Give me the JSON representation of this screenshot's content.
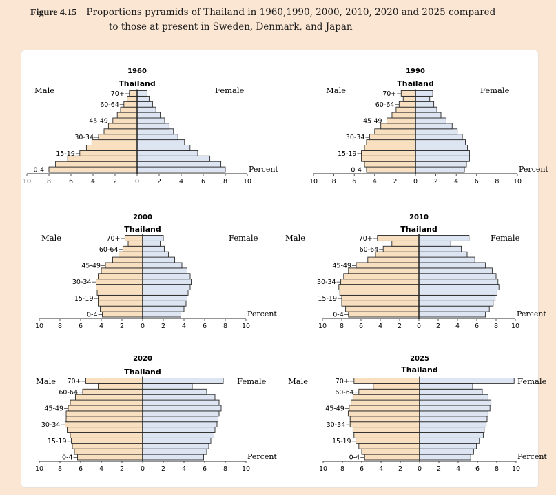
{
  "figure": {
    "label": "Figure 4.15",
    "caption_line1": "Proportions pyramids of Thailand in 1960,1990, 2000, 2010, 2020 and 2025 compared",
    "caption_line2": "to those at present in Sweden, Denmark, and Japan"
  },
  "colors": {
    "male_fill": "#f8dfbf",
    "female_fill": "#dde5f3",
    "bar_stroke": "#2a2a2a"
  },
  "chart_data": [
    {
      "type": "bar",
      "orientation": "horizontal-pyramid",
      "title": "1960",
      "subtitle": "Thailand",
      "male_label": "Male",
      "female_label": "Female",
      "xlabel": "Percent",
      "xlim": [
        -10,
        10
      ],
      "x_ticks": [
        "10",
        "8",
        "6",
        "4",
        "2",
        "0",
        "2",
        "4",
        "6",
        "8",
        "10"
      ],
      "age_groups": [
        "0-4",
        "5-9",
        "10-14",
        "15-19",
        "20-24",
        "25-29",
        "30-34",
        "35-39",
        "40-44",
        "45-49",
        "50-54",
        "55-59",
        "60-64",
        "65-69",
        "70+"
      ],
      "age_labels_shown": {
        "0": "0-4",
        "3": "15-19",
        "6": "30-34",
        "9": "45-49",
        "12": "60-64",
        "14": "70+"
      },
      "series": [
        {
          "name": "Male",
          "values": [
            8.0,
            7.4,
            6.3,
            5.2,
            4.6,
            4.1,
            3.5,
            3.0,
            2.6,
            2.2,
            1.8,
            1.5,
            1.2,
            0.9,
            0.7
          ]
        },
        {
          "name": "Female",
          "values": [
            8.0,
            7.6,
            6.6,
            5.5,
            4.8,
            4.3,
            3.7,
            3.3,
            2.9,
            2.5,
            2.1,
            1.7,
            1.4,
            1.1,
            0.9
          ]
        }
      ]
    },
    {
      "type": "bar",
      "orientation": "horizontal-pyramid",
      "title": "1990",
      "subtitle": "Thailand",
      "male_label": "Male",
      "female_label": "Female",
      "xlabel": "Percent",
      "xlim": [
        -10,
        10
      ],
      "x_ticks": [
        "10",
        "8",
        "6",
        "4",
        "2",
        "0",
        "2",
        "4",
        "6",
        "8",
        "10"
      ],
      "age_groups": [
        "0-4",
        "5-9",
        "10-14",
        "15-19",
        "20-24",
        "25-29",
        "30-34",
        "35-39",
        "40-44",
        "45-49",
        "50-54",
        "55-59",
        "60-64",
        "65-69",
        "70+"
      ],
      "age_labels_shown": {
        "0": "0-4",
        "3": "15-19",
        "6": "30-34",
        "9": "45-49",
        "12": "60-64",
        "14": "70+"
      },
      "series": [
        {
          "name": "Male",
          "values": [
            4.8,
            5.0,
            5.3,
            5.3,
            5.0,
            4.8,
            4.5,
            4.0,
            3.4,
            2.8,
            2.3,
            1.9,
            1.6,
            1.2,
            1.4
          ]
        },
        {
          "name": "Female",
          "values": [
            4.8,
            5.0,
            5.3,
            5.3,
            5.1,
            4.9,
            4.6,
            4.1,
            3.6,
            3.0,
            2.5,
            2.1,
            1.8,
            1.4,
            1.7
          ]
        }
      ]
    },
    {
      "type": "bar",
      "orientation": "horizontal-pyramid",
      "title": "2000",
      "subtitle": "Thailand",
      "male_label": "Male",
      "female_label": "Female",
      "xlabel": "Percent",
      "xlim": [
        -10,
        10
      ],
      "x_ticks": [
        "10",
        "8",
        "6",
        "4",
        "2",
        "0",
        "2",
        "4",
        "6",
        "8",
        "10"
      ],
      "age_groups": [
        "0-4",
        "5-9",
        "10-14",
        "15-19",
        "20-24",
        "25-29",
        "30-34",
        "35-39",
        "40-44",
        "45-49",
        "50-54",
        "55-59",
        "60-64",
        "65-69",
        "70+"
      ],
      "age_labels_shown": {
        "0": "0-4",
        "3": "15-19",
        "6": "30-34",
        "9": "45-49",
        "12": "60-64",
        "14": "70+"
      },
      "series": [
        {
          "name": "Male",
          "values": [
            3.9,
            4.1,
            4.3,
            4.3,
            4.4,
            4.5,
            4.5,
            4.3,
            4.0,
            3.6,
            2.9,
            2.3,
            1.9,
            1.4,
            1.7
          ]
        },
        {
          "name": "Female",
          "values": [
            3.7,
            4.0,
            4.2,
            4.3,
            4.4,
            4.6,
            4.7,
            4.6,
            4.3,
            3.8,
            3.1,
            2.5,
            2.1,
            1.7,
            2.0
          ]
        }
      ]
    },
    {
      "type": "bar",
      "orientation": "horizontal-pyramid",
      "title": "2010",
      "subtitle": "Thailand",
      "male_label": "Male",
      "female_label": "Female",
      "xlabel": "Percent",
      "xlim": [
        -10,
        10
      ],
      "x_ticks": [
        "10",
        "8",
        "6",
        "4",
        "2",
        "0",
        "2",
        "4",
        "6",
        "8",
        "10"
      ],
      "age_groups": [
        "0-4",
        "5-9",
        "10-14",
        "15-19",
        "20-24",
        "25-29",
        "30-34",
        "35-39",
        "40-44",
        "45-49",
        "50-54",
        "55-59",
        "60-64",
        "65-69",
        "70+"
      ],
      "age_labels_shown": {
        "0": "0-4",
        "3": "15-19",
        "6": "30-34",
        "9": "45-49",
        "12": "60-64",
        "14": "70+"
      },
      "series": [
        {
          "name": "Male",
          "values": [
            7.3,
            7.6,
            8.0,
            8.0,
            8.2,
            8.3,
            8.1,
            7.8,
            7.3,
            6.5,
            5.3,
            4.5,
            3.7,
            2.8,
            4.3
          ]
        },
        {
          "name": "Female",
          "values": [
            6.9,
            7.3,
            7.7,
            7.9,
            8.1,
            8.3,
            8.2,
            8.0,
            7.6,
            6.9,
            5.8,
            5.0,
            4.4,
            3.3,
            5.2
          ]
        }
      ]
    },
    {
      "type": "bar",
      "orientation": "horizontal-pyramid",
      "title": "2020",
      "subtitle": "Thailand",
      "male_label": "Male",
      "female_label": "Female",
      "xlabel": "Percent",
      "xlim": [
        -10,
        10
      ],
      "x_ticks": [
        "10",
        "8",
        "6",
        "4",
        "2",
        "0",
        "2",
        "4",
        "6",
        "8",
        "10"
      ],
      "age_groups": [
        "0-4",
        "5-9",
        "10-14",
        "15-19",
        "20-24",
        "25-29",
        "30-34",
        "35-39",
        "40-44",
        "45-49",
        "50-54",
        "55-59",
        "60-64",
        "65-69",
        "70+"
      ],
      "age_labels_shown": {
        "0": "0-4",
        "3": "15-19",
        "6": "30-34",
        "9": "45-49",
        "12": "60-64",
        "14": "70+"
      },
      "series": [
        {
          "name": "Male",
          "values": [
            6.3,
            6.6,
            6.8,
            6.9,
            7.0,
            7.3,
            7.5,
            7.4,
            7.4,
            7.2,
            7.0,
            6.5,
            5.8,
            4.3,
            5.5
          ]
        },
        {
          "name": "Female",
          "values": [
            5.9,
            6.2,
            6.4,
            6.6,
            6.9,
            7.0,
            7.2,
            7.3,
            7.4,
            7.6,
            7.4,
            7.0,
            6.2,
            4.8,
            7.8
          ]
        }
      ]
    },
    {
      "type": "bar",
      "orientation": "horizontal-pyramid",
      "title": "2025",
      "subtitle": "Thailand",
      "male_label": "Male",
      "female_label": "Female",
      "xlabel": "Percent",
      "xlim": [
        -10,
        10
      ],
      "x_ticks": [
        "10",
        "8",
        "6",
        "4",
        "2",
        "0",
        "2",
        "4",
        "6",
        "8",
        "10"
      ],
      "age_groups": [
        "0-4",
        "5-9",
        "10-14",
        "15-19",
        "20-24",
        "25-29",
        "30-34",
        "35-39",
        "40-44",
        "45-49",
        "50-54",
        "55-59",
        "60-64",
        "65-69",
        "70+"
      ],
      "age_labels_shown": {
        "0": "0-4",
        "3": "15-19",
        "6": "30-34",
        "9": "45-49",
        "12": "60-64",
        "14": "70+"
      },
      "series": [
        {
          "name": "Male",
          "values": [
            5.7,
            6.0,
            6.3,
            6.6,
            6.8,
            6.9,
            7.2,
            7.2,
            7.4,
            7.3,
            7.1,
            6.9,
            6.3,
            4.8,
            6.8
          ]
        },
        {
          "name": "Female",
          "values": [
            5.3,
            5.6,
            5.9,
            6.2,
            6.6,
            6.7,
            6.9,
            7.0,
            7.1,
            7.3,
            7.4,
            7.1,
            6.5,
            5.5,
            9.8
          ]
        }
      ]
    }
  ]
}
